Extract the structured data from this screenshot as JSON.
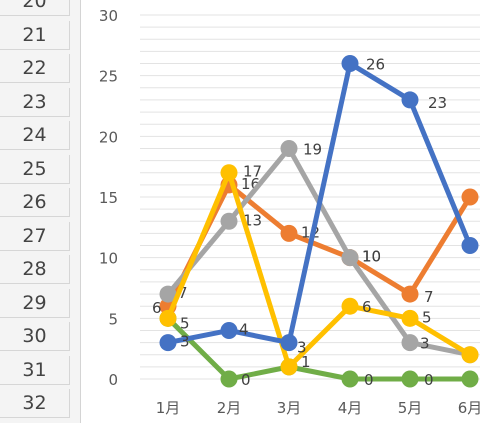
{
  "sheet": {
    "row_headers": [
      "20",
      "21",
      "22",
      "23",
      "24",
      "25",
      "26",
      "27",
      "28",
      "29",
      "30",
      "31",
      "32"
    ]
  },
  "chart_data": {
    "type": "line",
    "title": "",
    "xlabel": "",
    "ylabel": "",
    "categories": [
      "1月",
      "2月",
      "3月",
      "4月",
      "5月",
      "6月"
    ],
    "ylim": [
      0,
      30
    ],
    "yticks": [
      0,
      5,
      10,
      15,
      20,
      25,
      30
    ],
    "grid": true,
    "series": [
      {
        "color": "#4472C4",
        "values": [
          3,
          4,
          3,
          26,
          23,
          11
        ],
        "labels": [
          "3",
          "4",
          "3",
          "26",
          "23",
          ""
        ]
      },
      {
        "color": "#ED7D31",
        "values": [
          6,
          16,
          12,
          10,
          7,
          15
        ],
        "labels": [
          "6",
          "16",
          "12",
          "10",
          "7",
          ""
        ]
      },
      {
        "color": "#A5A5A5",
        "values": [
          7,
          13,
          19,
          10,
          3,
          2
        ],
        "labels": [
          "7",
          "13",
          "19",
          "10",
          "3",
          ""
        ]
      },
      {
        "color": "#FFC000",
        "values": [
          5,
          17,
          1,
          6,
          5,
          2
        ],
        "labels": [
          "5",
          "17",
          "",
          "6",
          "5",
          ""
        ]
      },
      {
        "color": "#70AD47",
        "values": [
          5,
          0,
          1,
          0,
          0,
          0
        ],
        "labels": [
          "",
          "0",
          "1",
          "0",
          "0",
          ""
        ]
      }
    ]
  }
}
